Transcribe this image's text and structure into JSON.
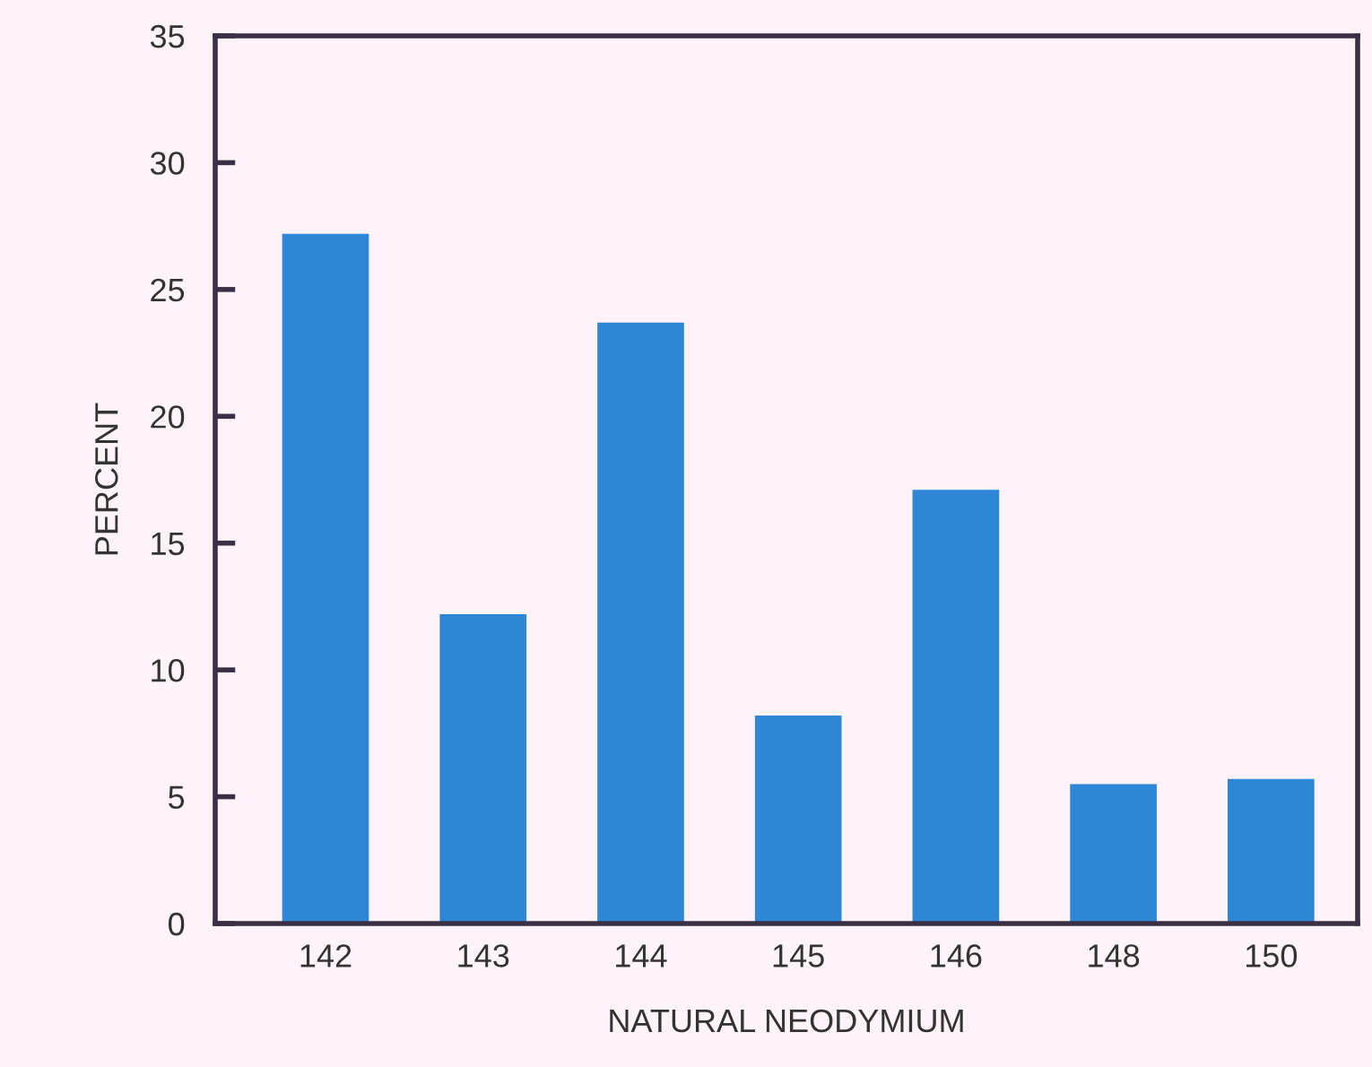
{
  "chart_data": {
    "type": "bar",
    "xlabel": "NATURAL NEODYMIUM",
    "ylabel": "PERCENT",
    "categories": [
      "142",
      "143",
      "144",
      "145",
      "146",
      "148",
      "150"
    ],
    "values": [
      27.2,
      12.2,
      23.7,
      8.2,
      17.1,
      5.5,
      5.7
    ],
    "color": "#2f86d6",
    "ylim": [
      0,
      35
    ],
    "yticks": [
      0,
      5,
      10,
      15,
      20,
      25,
      30,
      35
    ],
    "grid": false
  }
}
